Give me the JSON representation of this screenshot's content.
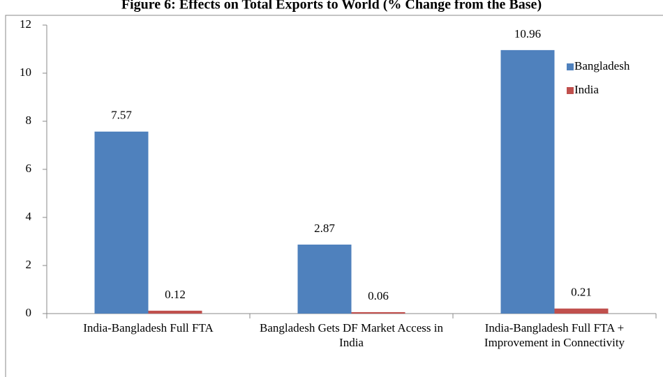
{
  "chart_data": {
    "type": "bar",
    "title": "Figure 6: Effects on Total Exports to World (% Change from the Base)",
    "categories": [
      "India-Bangladesh Full FTA",
      "Bangladesh Gets DF Market Access in India",
      "India-Bangladesh Full FTA + Improvement in Connectivity"
    ],
    "series": [
      {
        "name": "Bangladesh",
        "color": "#4f81bd",
        "values": [
          7.57,
          2.87,
          10.96
        ]
      },
      {
        "name": "India",
        "color": "#c0504d",
        "values": [
          0.12,
          0.06,
          0.21
        ]
      }
    ],
    "ylim": [
      0,
      12
    ],
    "yticks": [
      0,
      2,
      4,
      6,
      8,
      10,
      12
    ],
    "grid": false,
    "legend": "right"
  }
}
